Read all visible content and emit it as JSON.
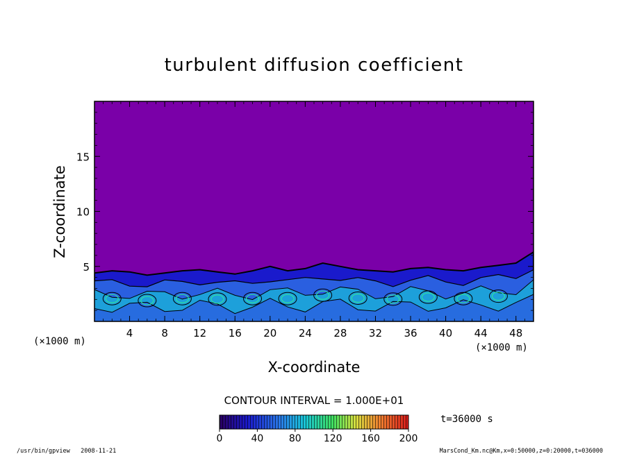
{
  "chart_data": {
    "type": "heatmap",
    "title": "turbulent diffusion coefficient",
    "xlabel": "X-coordinate",
    "ylabel": "Z-coordinate",
    "x_unit": "(×1000 m)",
    "y_unit": "(×1000 m)",
    "xlim": [
      0,
      50
    ],
    "ylim": [
      0,
      20
    ],
    "x_ticks": [
      4,
      8,
      12,
      16,
      20,
      24,
      28,
      32,
      36,
      40,
      44,
      48
    ],
    "y_ticks": [
      5,
      10,
      15
    ],
    "contour_interval_label": "CONTOUR INTERVAL = 1.000E+01",
    "colorbar": {
      "min": 0,
      "max": 200,
      "ticks": [
        0,
        40,
        80,
        120,
        160,
        200
      ]
    },
    "background_value": 0,
    "turbulent_layer_top": [
      4.4,
      4.6,
      4.5,
      4.2,
      4.4,
      4.6,
      4.7,
      4.5,
      4.3,
      4.6,
      5.0,
      4.6,
      4.8,
      5.3,
      5.0,
      4.7,
      4.6,
      4.5,
      4.8,
      4.9,
      4.7,
      4.6,
      4.9,
      5.1,
      5.3,
      6.3
    ],
    "time_label": "t=36000 s",
    "footer_left": "/usr/bin/gpview   2008-11-21",
    "footer_right": "MarsCond_Km.nc@Km,x=0:50000,z=0:20000,t=036000",
    "colors": {
      "background_field": "#7a00a8",
      "layer_low": "#1a1acc",
      "layer_mid": "#2a5fe0",
      "layer_high": "#19b6d8",
      "layer_peak": "#2fe0a0",
      "contour": "#000000"
    }
  }
}
